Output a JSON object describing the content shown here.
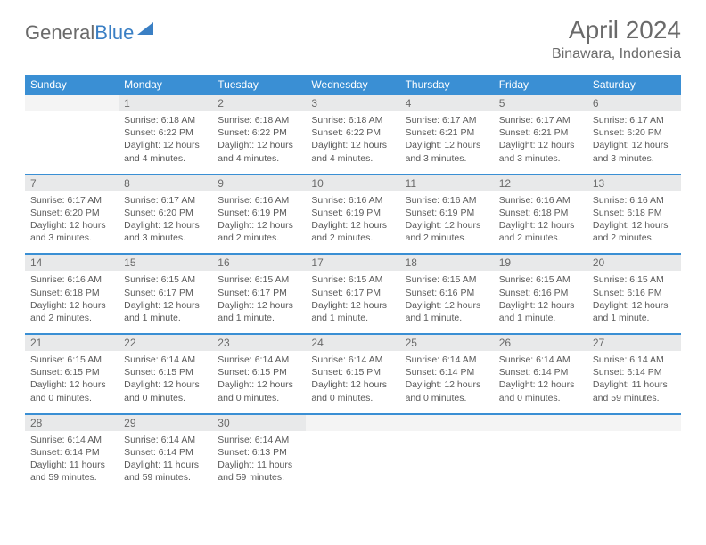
{
  "brand": {
    "part1": "General",
    "part2": "Blue"
  },
  "title": "April 2024",
  "location": "Binawara, Indonesia",
  "colors": {
    "header_bg": "#3a8fd4",
    "daynum_bg": "#e8e9ea",
    "text_muted": "#6a6a6a",
    "separator": "#3a8fd4"
  },
  "weekdays": [
    "Sunday",
    "Monday",
    "Tuesday",
    "Wednesday",
    "Thursday",
    "Friday",
    "Saturday"
  ],
  "weeks": [
    {
      "nums": [
        "",
        "1",
        "2",
        "3",
        "4",
        "5",
        "6"
      ],
      "cells": [
        {
          "sunrise": "",
          "sunset": "",
          "daylight": ""
        },
        {
          "sunrise": "Sunrise: 6:18 AM",
          "sunset": "Sunset: 6:22 PM",
          "daylight": "Daylight: 12 hours and 4 minutes."
        },
        {
          "sunrise": "Sunrise: 6:18 AM",
          "sunset": "Sunset: 6:22 PM",
          "daylight": "Daylight: 12 hours and 4 minutes."
        },
        {
          "sunrise": "Sunrise: 6:18 AM",
          "sunset": "Sunset: 6:22 PM",
          "daylight": "Daylight: 12 hours and 4 minutes."
        },
        {
          "sunrise": "Sunrise: 6:17 AM",
          "sunset": "Sunset: 6:21 PM",
          "daylight": "Daylight: 12 hours and 3 minutes."
        },
        {
          "sunrise": "Sunrise: 6:17 AM",
          "sunset": "Sunset: 6:21 PM",
          "daylight": "Daylight: 12 hours and 3 minutes."
        },
        {
          "sunrise": "Sunrise: 6:17 AM",
          "sunset": "Sunset: 6:20 PM",
          "daylight": "Daylight: 12 hours and 3 minutes."
        }
      ]
    },
    {
      "nums": [
        "7",
        "8",
        "9",
        "10",
        "11",
        "12",
        "13"
      ],
      "cells": [
        {
          "sunrise": "Sunrise: 6:17 AM",
          "sunset": "Sunset: 6:20 PM",
          "daylight": "Daylight: 12 hours and 3 minutes."
        },
        {
          "sunrise": "Sunrise: 6:17 AM",
          "sunset": "Sunset: 6:20 PM",
          "daylight": "Daylight: 12 hours and 3 minutes."
        },
        {
          "sunrise": "Sunrise: 6:16 AM",
          "sunset": "Sunset: 6:19 PM",
          "daylight": "Daylight: 12 hours and 2 minutes."
        },
        {
          "sunrise": "Sunrise: 6:16 AM",
          "sunset": "Sunset: 6:19 PM",
          "daylight": "Daylight: 12 hours and 2 minutes."
        },
        {
          "sunrise": "Sunrise: 6:16 AM",
          "sunset": "Sunset: 6:19 PM",
          "daylight": "Daylight: 12 hours and 2 minutes."
        },
        {
          "sunrise": "Sunrise: 6:16 AM",
          "sunset": "Sunset: 6:18 PM",
          "daylight": "Daylight: 12 hours and 2 minutes."
        },
        {
          "sunrise": "Sunrise: 6:16 AM",
          "sunset": "Sunset: 6:18 PM",
          "daylight": "Daylight: 12 hours and 2 minutes."
        }
      ]
    },
    {
      "nums": [
        "14",
        "15",
        "16",
        "17",
        "18",
        "19",
        "20"
      ],
      "cells": [
        {
          "sunrise": "Sunrise: 6:16 AM",
          "sunset": "Sunset: 6:18 PM",
          "daylight": "Daylight: 12 hours and 2 minutes."
        },
        {
          "sunrise": "Sunrise: 6:15 AM",
          "sunset": "Sunset: 6:17 PM",
          "daylight": "Daylight: 12 hours and 1 minute."
        },
        {
          "sunrise": "Sunrise: 6:15 AM",
          "sunset": "Sunset: 6:17 PM",
          "daylight": "Daylight: 12 hours and 1 minute."
        },
        {
          "sunrise": "Sunrise: 6:15 AM",
          "sunset": "Sunset: 6:17 PM",
          "daylight": "Daylight: 12 hours and 1 minute."
        },
        {
          "sunrise": "Sunrise: 6:15 AM",
          "sunset": "Sunset: 6:16 PM",
          "daylight": "Daylight: 12 hours and 1 minute."
        },
        {
          "sunrise": "Sunrise: 6:15 AM",
          "sunset": "Sunset: 6:16 PM",
          "daylight": "Daylight: 12 hours and 1 minute."
        },
        {
          "sunrise": "Sunrise: 6:15 AM",
          "sunset": "Sunset: 6:16 PM",
          "daylight": "Daylight: 12 hours and 1 minute."
        }
      ]
    },
    {
      "nums": [
        "21",
        "22",
        "23",
        "24",
        "25",
        "26",
        "27"
      ],
      "cells": [
        {
          "sunrise": "Sunrise: 6:15 AM",
          "sunset": "Sunset: 6:15 PM",
          "daylight": "Daylight: 12 hours and 0 minutes."
        },
        {
          "sunrise": "Sunrise: 6:14 AM",
          "sunset": "Sunset: 6:15 PM",
          "daylight": "Daylight: 12 hours and 0 minutes."
        },
        {
          "sunrise": "Sunrise: 6:14 AM",
          "sunset": "Sunset: 6:15 PM",
          "daylight": "Daylight: 12 hours and 0 minutes."
        },
        {
          "sunrise": "Sunrise: 6:14 AM",
          "sunset": "Sunset: 6:15 PM",
          "daylight": "Daylight: 12 hours and 0 minutes."
        },
        {
          "sunrise": "Sunrise: 6:14 AM",
          "sunset": "Sunset: 6:14 PM",
          "daylight": "Daylight: 12 hours and 0 minutes."
        },
        {
          "sunrise": "Sunrise: 6:14 AM",
          "sunset": "Sunset: 6:14 PM",
          "daylight": "Daylight: 12 hours and 0 minutes."
        },
        {
          "sunrise": "Sunrise: 6:14 AM",
          "sunset": "Sunset: 6:14 PM",
          "daylight": "Daylight: 11 hours and 59 minutes."
        }
      ]
    },
    {
      "nums": [
        "28",
        "29",
        "30",
        "",
        "",
        "",
        ""
      ],
      "cells": [
        {
          "sunrise": "Sunrise: 6:14 AM",
          "sunset": "Sunset: 6:14 PM",
          "daylight": "Daylight: 11 hours and 59 minutes."
        },
        {
          "sunrise": "Sunrise: 6:14 AM",
          "sunset": "Sunset: 6:14 PM",
          "daylight": "Daylight: 11 hours and 59 minutes."
        },
        {
          "sunrise": "Sunrise: 6:14 AM",
          "sunset": "Sunset: 6:13 PM",
          "daylight": "Daylight: 11 hours and 59 minutes."
        },
        {
          "sunrise": "",
          "sunset": "",
          "daylight": ""
        },
        {
          "sunrise": "",
          "sunset": "",
          "daylight": ""
        },
        {
          "sunrise": "",
          "sunset": "",
          "daylight": ""
        },
        {
          "sunrise": "",
          "sunset": "",
          "daylight": ""
        }
      ]
    }
  ]
}
